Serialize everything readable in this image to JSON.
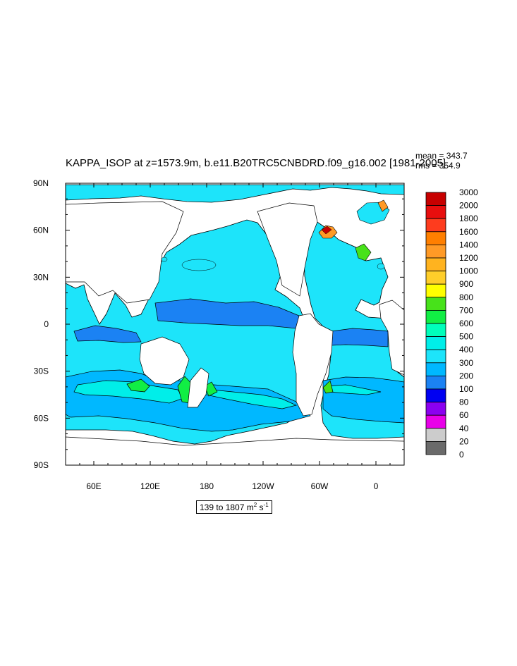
{
  "title": "KAPPA_ISOP at z=1573.9m, b.e11.B20TRC5CNBDRD.f09_g16.002 [1981-2005]",
  "stats": {
    "mean": "mean = 343.7",
    "rms": "rms = 354.9"
  },
  "range_label": {
    "text": "139 to 1807 m",
    "unit_sup": "2",
    "unit_tail": " s",
    "unit_sup2": "-1"
  },
  "chart_data": {
    "type": "heatmap",
    "title": "KAPPA_ISOP at z=1573.9m, b.e11.B20TRC5CNBDRD.f09_g16.002 [1981-2005]",
    "field_range": [
      139,
      1807
    ],
    "units": "m2 s-1",
    "mean": 343.7,
    "rms": 354.9,
    "x_axis": {
      "lon_range": [
        30,
        390
      ],
      "ticks": [
        {
          "lon": 60,
          "label": "60E"
        },
        {
          "lon": 120,
          "label": "120E"
        },
        {
          "lon": 180,
          "label": "180"
        },
        {
          "lon": 240,
          "label": "120W"
        },
        {
          "lon": 300,
          "label": "60W"
        },
        {
          "lon": 360,
          "label": "0"
        }
      ]
    },
    "y_axis": {
      "lat_range": [
        -90,
        90
      ],
      "ticks": [
        {
          "lat": 90,
          "label": "90N"
        },
        {
          "lat": 60,
          "label": "60N"
        },
        {
          "lat": 30,
          "label": "30N"
        },
        {
          "lat": 0,
          "label": "0"
        },
        {
          "lat": -30,
          "label": "30S"
        },
        {
          "lat": -60,
          "label": "60S"
        },
        {
          "lat": -90,
          "label": "90S"
        }
      ]
    },
    "colorbar": {
      "boxes_top_to_bottom": [
        "#c70000",
        "#e80e0e",
        "#fe3c1e",
        "#ff7f00",
        "#ff9a26",
        "#ffb31f",
        "#ffce2a",
        "#ffff00",
        "#47e21a",
        "#11ee44",
        "#00ffbb",
        "#00eee9",
        "#1de4fa",
        "#00b8ff",
        "#1b82f3",
        "#0000f2",
        "#8b00f0",
        "#e800e8",
        "#cccccc",
        "#6a6a6a"
      ],
      "labels_top_to_bottom": [
        "3000",
        "2000",
        "1800",
        "1600",
        "1400",
        "1200",
        "1000",
        "900",
        "800",
        "700",
        "600",
        "500",
        "400",
        "300",
        "200",
        "100",
        "80",
        "60",
        "40",
        "20",
        "0"
      ]
    },
    "contour_color_scale": {
      "ocean_base": "#1de4fa",
      "lower_band": "#00b8ff",
      "equatorial_band": "#1b82f3",
      "high_band": "#00eee9",
      "peak_band": "#11ee44",
      "land": "#ffffff"
    }
  }
}
